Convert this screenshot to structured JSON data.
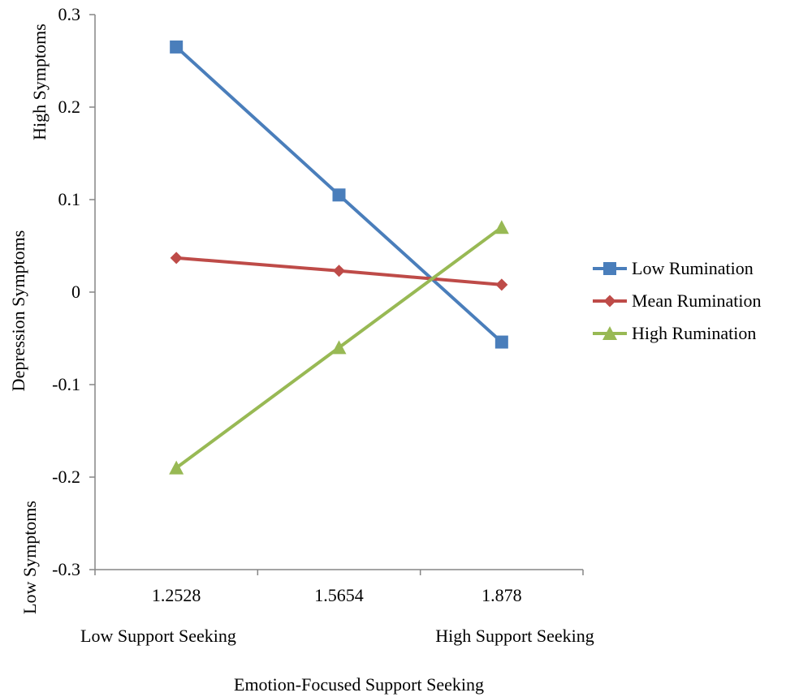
{
  "chart_data": {
    "type": "line",
    "title": "",
    "xlabel": "Emotion-Focused Support Seeking",
    "ylabel": "Depression Symptoms",
    "y_high_label": "High  Symptoms",
    "y_low_label": "Low   Symptoms",
    "x_low_label": "Low Support Seeking",
    "x_high_label": "High Support Seeking",
    "categories": [
      "1.2528",
      "1.5654",
      "1.878"
    ],
    "ylim": [
      -0.3,
      0.3
    ],
    "yticks": [
      "0.3",
      "0.2",
      "0.1",
      "0",
      "-0.1",
      "-0.2",
      "-0.3"
    ],
    "ytick_values": [
      0.3,
      0.2,
      0.1,
      0,
      -0.1,
      -0.2,
      -0.3
    ],
    "grid": false,
    "legend_position": "right",
    "series": [
      {
        "name": "Low Rumination",
        "values": [
          0.265,
          0.105,
          -0.054
        ],
        "color": "#4a7ebb",
        "marker": "square"
      },
      {
        "name": "Mean Rumination",
        "values": [
          0.037,
          0.023,
          0.008
        ],
        "color": "#be4b48",
        "marker": "diamond"
      },
      {
        "name": "High Rumination",
        "values": [
          -0.19,
          -0.06,
          0.07
        ],
        "color": "#98b954",
        "marker": "triangle"
      }
    ]
  }
}
